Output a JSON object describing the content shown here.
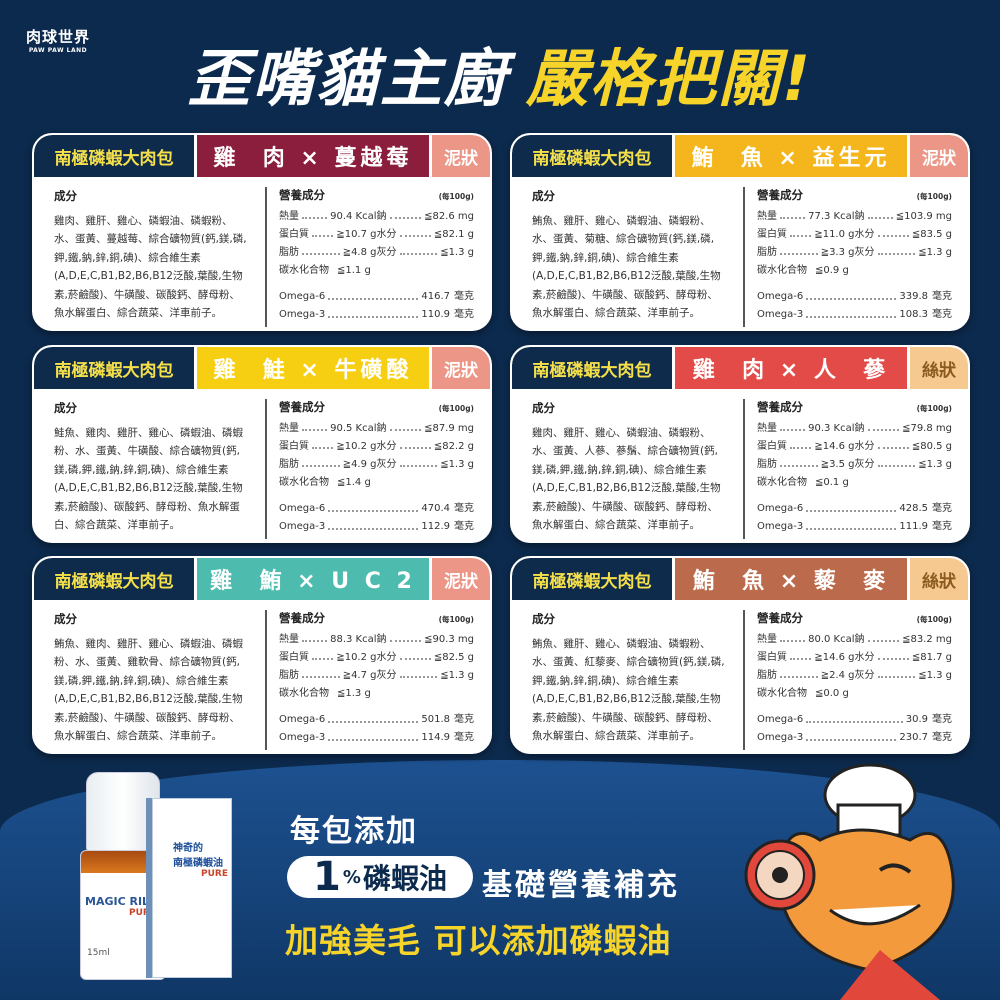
{
  "logo": {
    "name_zh": "肉球世界",
    "name_en": "PAW PAW LAND"
  },
  "title": {
    "white": "歪嘴貓主廚",
    "yellow": "嚴格把關!"
  },
  "labels": {
    "ingredients": "成分",
    "nutrition": "營養成分",
    "per": "(每100g)",
    "calories": "熱量",
    "protein": "蛋白質",
    "fat": "脂肪",
    "carbs": "碳水化合物",
    "sodium": "鈉",
    "moisture": "水分",
    "ash": "灰分",
    "omega6": "Omega-6",
    "omega3": "Omega-3",
    "unit_mg": "毫克"
  },
  "cards": [
    {
      "brand": "南極磷蝦大肉包",
      "flavor": "雞  肉 × 蔓越莓",
      "texture": "泥狀",
      "flavor_color": "#8b1d3d",
      "texture_color": "#eb9686",
      "texture_text_color": "#ffffff",
      "ingredients": "雞肉、雞肝、雞心、磷蝦油、磷蝦粉、水、蛋黃、蔓越莓、綜合礦物質(鈣,鎂,磷,鉀,鐵,鈉,鋅,銅,碘)、綜合維生素(A,D,E,C,B1,B2,B6,B12泛酸,葉酸,生物素,菸鹼酸)、牛磺酸、碳酸鈣、酵母粉、魚水解蛋白、綜合蔬菜、洋車前子。",
      "calories": "90.4 Kcal",
      "protein": "≧10.7 g",
      "fat": "≧4.8 g",
      "carbs": "≦1.1 g",
      "sodium": "≦82.6 mg",
      "moisture": "≦82.1 g",
      "ash": "≦1.3 g",
      "omega6": "416.7",
      "omega3": "110.9"
    },
    {
      "brand": "南極磷蝦大肉包",
      "flavor": "鮪  魚 × 益生元",
      "texture": "泥狀",
      "flavor_color": "#f4b61c",
      "texture_color": "#eb9686",
      "texture_text_color": "#ffffff",
      "ingredients": "鮪魚、雞肝、雞心、磷蝦油、磷蝦粉、水、蛋黃、菊糖、綜合礦物質(鈣,鎂,磷,鉀,鐵,鈉,鋅,銅,碘)、綜合維生素(A,D,E,C,B1,B2,B6,B12泛酸,葉酸,生物素,菸鹼酸)、牛磺酸、碳酸鈣、酵母粉、魚水解蛋白、綜合蔬菜、洋車前子。",
      "calories": "77.3 Kcal",
      "protein": "≧11.0 g",
      "fat": "≧3.3 g",
      "carbs": "≦0.9 g",
      "sodium": "≦103.9 mg",
      "moisture": "≦83.5 g",
      "ash": "≦1.3 g",
      "omega6": "339.8",
      "omega3": "108.3"
    },
    {
      "brand": "南極磷蝦大肉包",
      "flavor": "雞  鮭 × 牛磺酸",
      "texture": "泥狀",
      "flavor_color": "#f6cf12",
      "texture_color": "#eb9686",
      "texture_text_color": "#ffffff",
      "ingredients": "鮭魚、雞肉、雞肝、雞心、磷蝦油、磷蝦粉、水、蛋黃、牛磺酸、綜合礦物質(鈣,鎂,磷,鉀,鐵,鈉,鋅,銅,碘)、綜合維生素(A,D,E,C,B1,B2,B6,B12泛酸,葉酸,生物素,菸鹼酸)、碳酸鈣、酵母粉、魚水解蛋白、綜合蔬菜、洋車前子。",
      "calories": "90.5 Kcal",
      "protein": "≧10.2 g",
      "fat": "≧4.9 g",
      "carbs": "≦1.4 g",
      "sodium": "≦87.9 mg",
      "moisture": "≦82.2 g",
      "ash": "≦1.3 g",
      "omega6": "470.4",
      "omega3": "112.9"
    },
    {
      "brand": "南極磷蝦大肉包",
      "flavor": "雞  肉 × 人  蔘",
      "texture": "絲狀",
      "flavor_color": "#e24b48",
      "texture_color": "#f6c991",
      "texture_text_color": "#8a5a1e",
      "ingredients": "雞肉、雞肝、雞心、磷蝦油、磷蝦粉、水、蛋黃、人蔘、蔘鬚、綜合礦物質(鈣,鎂,磷,鉀,鐵,鈉,鋅,銅,碘)、綜合維生素(A,D,E,C,B1,B2,B6,B12泛酸,葉酸,生物素,菸鹼酸)、牛磺酸、碳酸鈣、酵母粉、魚水解蛋白、綜合蔬菜、洋車前子。",
      "calories": "90.3 Kcal",
      "protein": "≧14.6 g",
      "fat": "≧3.5 g",
      "carbs": "≦0.1 g",
      "sodium": "≦79.8 mg",
      "moisture": "≦80.5 g",
      "ash": "≦1.3 g",
      "omega6": "428.5",
      "omega3": "111.9"
    },
    {
      "brand": "南極磷蝦大肉包",
      "flavor": "雞  鮪 × U C 2",
      "texture": "泥狀",
      "flavor_color": "#4dbcae",
      "texture_color": "#eb9686",
      "texture_text_color": "#ffffff",
      "ingredients": "鮪魚、雞肉、雞肝、雞心、磷蝦油、磷蝦粉、水、蛋黃、雞軟骨、綜合礦物質(鈣,鎂,磷,鉀,鐵,鈉,鋅,銅,碘)、綜合維生素(A,D,E,C,B1,B2,B6,B12泛酸,葉酸,生物素,菸鹼酸)、牛磺酸、碳酸鈣、酵母粉、魚水解蛋白、綜合蔬菜、洋車前子。",
      "calories": "88.3 Kcal",
      "protein": "≧10.2 g",
      "fat": "≧4.7 g",
      "carbs": "≦1.3 g",
      "sodium": "≦90.3 mg",
      "moisture": "≦82.5 g",
      "ash": "≦1.3 g",
      "omega6": "501.8",
      "omega3": "114.9"
    },
    {
      "brand": "南極磷蝦大肉包",
      "flavor": "鮪  魚 × 藜  麥",
      "texture": "絲狀",
      "flavor_color": "#bb6a4c",
      "texture_color": "#f6c991",
      "texture_text_color": "#8a5a1e",
      "ingredients": "鮪魚、雞肝、雞心、磷蝦油、磷蝦粉、水、蛋黃、紅藜麥、綜合礦物質(鈣,鎂,磷,鉀,鐵,鈉,鋅,銅,碘)、綜合維生素(A,D,E,C,B1,B2,B6,B12泛酸,葉酸,生物素,菸鹼酸)、牛磺酸、碳酸鈣、酵母粉、魚水解蛋白、綜合蔬菜、洋車前子。",
      "calories": "80.0 Kcal",
      "protein": "≧14.6 g",
      "fat": "≧2.4 g",
      "carbs": "≦0.0 g",
      "sodium": "≦83.2 mg",
      "moisture": "≦81.7 g",
      "ash": "≦1.3 g",
      "omega6": "30.9",
      "omega3": "230.7"
    }
  ],
  "promo": {
    "line1": "每包添加",
    "pill_number": "1",
    "pill_percent": "%",
    "pill_text": "磷蝦油",
    "line2": "基礎營養補充",
    "line3": "加強美毛 可以添加磷蝦油"
  },
  "product": {
    "bottle_name": "MAGIC RILL",
    "bottle_sub": "PURE",
    "bottle_volume": "15ml",
    "box_line1": "神奇的",
    "box_line2": "南極磷蝦油",
    "box_sub": "PURE"
  },
  "colors": {
    "background": "#0c2a4d",
    "title_accent": "#f7d42a",
    "brand_bg": "#0f2b4c",
    "brand_text": "#f5e04a"
  }
}
